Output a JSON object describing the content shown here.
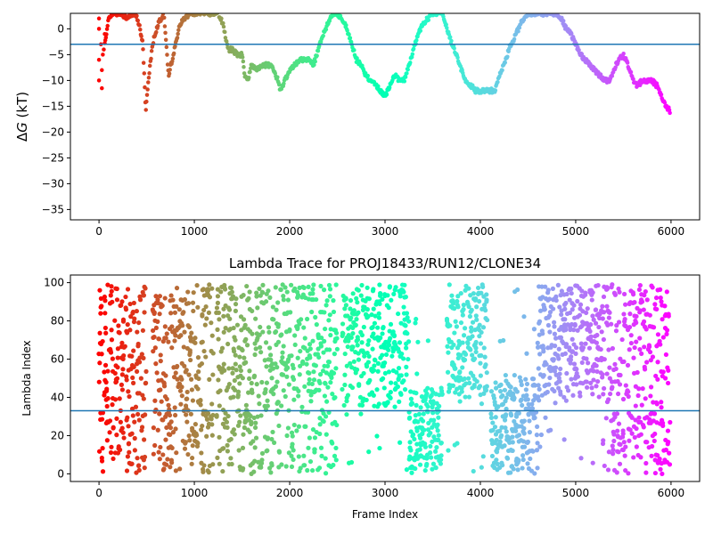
{
  "chart_data": [
    {
      "type": "scatter",
      "title": "",
      "xlabel": "",
      "ylabel": "ΔG (kT)",
      "ylabel_parts": {
        "delta": "Δ",
        "var": "G",
        "unit": " (kT)"
      },
      "xlim": [
        -300,
        6300
      ],
      "ylim": [
        -37,
        3
      ],
      "xticks": [
        0,
        1000,
        2000,
        3000,
        4000,
        5000,
        6000
      ],
      "yticks": [
        0,
        -5,
        -10,
        -15,
        -20,
        -25,
        -30,
        -35
      ],
      "hline": -3.0,
      "hline_color": "#1f77b4",
      "colormap": "rainbow",
      "grid": false,
      "trace_keypoints": {
        "x": [
          0,
          30,
          60,
          100,
          150,
          220,
          300,
          380,
          420,
          460,
          490,
          520,
          560,
          620,
          680,
          730,
          780,
          850,
          950,
          1050,
          1150,
          1250,
          1300,
          1330,
          1360,
          1400,
          1450,
          1500,
          1530,
          1560,
          1600,
          1650,
          1700,
          1760,
          1800,
          1850,
          1880,
          1900,
          1950,
          2000,
          2050,
          2100,
          2150,
          2200,
          2250,
          2300,
          2350,
          2400,
          2450,
          2480,
          2550,
          2600,
          2650,
          2700,
          2750,
          2800,
          2850,
          2900,
          2950,
          3000,
          3050,
          3100,
          3150,
          3200,
          3250,
          3300,
          3350,
          3400,
          3450,
          3500,
          3550,
          3600,
          3650,
          3700,
          3750,
          3800,
          3850,
          3900,
          3950,
          4000,
          4050,
          4100,
          4150,
          4200,
          4250,
          4300,
          4350,
          4400,
          4450,
          4500,
          4550,
          4600,
          4650,
          4700,
          4750,
          4800,
          4850,
          4900,
          4950,
          5000,
          5050,
          5100,
          5150,
          5200,
          5250,
          5300,
          5350,
          5400,
          5450,
          5500,
          5550,
          5600,
          5650,
          5700,
          5750,
          5800,
          5850,
          5900,
          5950,
          5990
        ],
        "y": [
          -11,
          -6,
          -3,
          2,
          3,
          3,
          2,
          3,
          1,
          -3,
          -16,
          -10,
          -3,
          1,
          3,
          -9,
          -5,
          1,
          3,
          3,
          3,
          3,
          1,
          -2,
          -4,
          -4,
          -5,
          -5,
          -9,
          -10,
          -7,
          -8,
          -7,
          -7,
          -7,
          -9,
          -10,
          -12,
          -10,
          -8,
          -7,
          -6,
          -6,
          -6,
          -7,
          -4,
          -1,
          1,
          3,
          3,
          2,
          0,
          -3,
          -6,
          -7,
          -9,
          -10,
          -11,
          -12,
          -13,
          -11,
          -9,
          -10,
          -10,
          -7,
          -4,
          -1,
          1,
          2,
          3,
          3,
          3,
          0,
          -3,
          -5,
          -8,
          -10,
          -11,
          -12,
          -12,
          -12,
          -12,
          -12,
          -9,
          -7,
          -4,
          -2,
          0,
          2,
          3,
          3,
          3,
          3,
          3,
          3,
          3,
          2,
          0,
          -1,
          -3,
          -5,
          -6,
          -7,
          -8,
          -9,
          -10,
          -10,
          -8,
          -6,
          -5,
          -7,
          -10,
          -11,
          -10,
          -10,
          -10,
          -11,
          -13,
          -15,
          -16
        ]
      },
      "marker_size": 3
    },
    {
      "type": "scatter",
      "title": "Lambda Trace for PROJ18433/RUN12/CLONE34",
      "xlabel": "Frame Index",
      "ylabel": "Lambda Index",
      "xlim": [
        -300,
        6300
      ],
      "ylim": [
        -4,
        104
      ],
      "xticks": [
        0,
        1000,
        2000,
        3000,
        4000,
        5000,
        6000
      ],
      "yticks": [
        0,
        20,
        40,
        60,
        80,
        100
      ],
      "hline": 33,
      "hline_color": "#1f77b4",
      "colormap": "rainbow",
      "grid": false,
      "n_frames": 6000,
      "lambda_range": [
        0,
        99
      ],
      "density_regions": [
        {
          "x": [
            0,
            40
          ],
          "lambda_range": [
            0,
            99
          ]
        },
        {
          "x": [
            40,
            500
          ],
          "lambda_range": [
            0,
            99
          ]
        },
        {
          "x": [
            500,
            1200
          ],
          "lambda_range": [
            0,
            99
          ]
        },
        {
          "x": [
            1200,
            2500
          ],
          "lambda_range": [
            0,
            99
          ]
        },
        {
          "x": [
            2550,
            3250
          ],
          "lambda_range": [
            35,
            99
          ]
        },
        {
          "x": [
            3200,
            3600
          ],
          "lambda_range": [
            0,
            45
          ]
        },
        {
          "x": [
            3650,
            4100
          ],
          "lambda_range": [
            40,
            99
          ]
        },
        {
          "x": [
            4100,
            4600
          ],
          "lambda_range": [
            0,
            50
          ]
        },
        {
          "x": [
            4600,
            5300
          ],
          "lambda_range": [
            40,
            99
          ]
        },
        {
          "x": [
            5300,
            5990
          ],
          "lambda_range": [
            0,
            99
          ]
        }
      ],
      "gaps": [
        [
          500,
          560
        ],
        [
          1200,
          1230
        ],
        [
          2500,
          2550
        ],
        [
          4080,
          4110
        ]
      ],
      "marker_size": 2.6
    }
  ]
}
